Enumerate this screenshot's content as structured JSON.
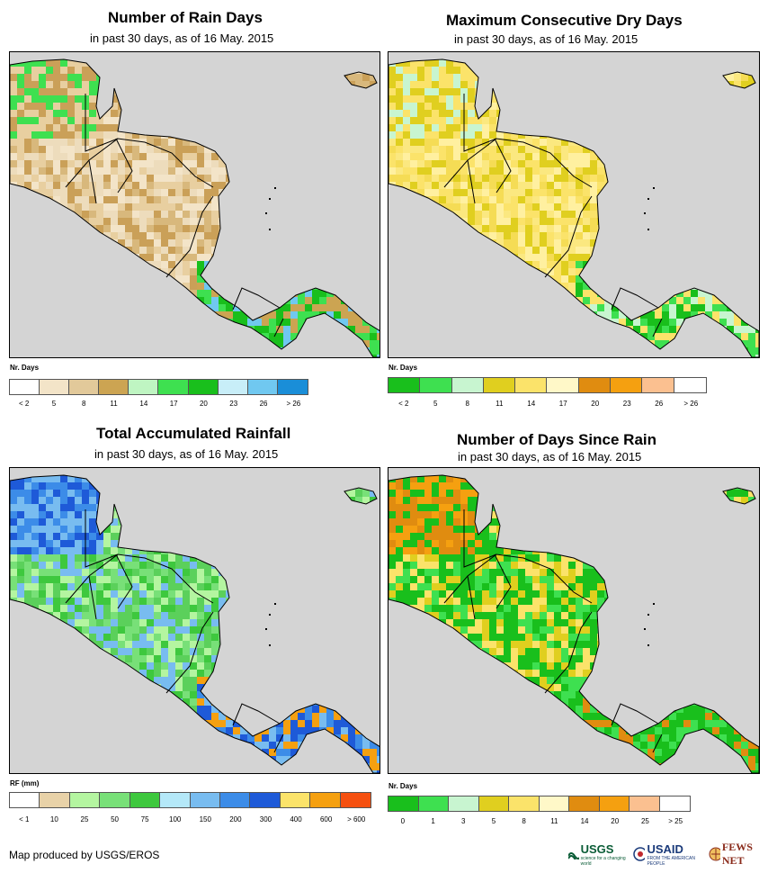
{
  "panels": [
    {
      "id": "rain-days",
      "title": "Number of Rain Days",
      "subtitle": "in past 30 days, as of 16 May. 2015",
      "legend_title": "Nr. Days",
      "legend_colors": [
        "#ffffff",
        "#f3e4c8",
        "#e2c99a",
        "#cca452",
        "#bff5c2",
        "#3ee050",
        "#19bf1c",
        "#c8eef8",
        "#70c8f0",
        "#1a8ed8"
      ],
      "legend_labels": [
        "< 2",
        "5",
        "8",
        "11",
        "14",
        "17",
        "20",
        "23",
        "26",
        "> 26"
      ],
      "land_palette": [
        "#e8cfa0",
        "#d8b87c",
        "#caa058",
        "#eddcbc",
        "#f3e4c8"
      ],
      "south_palette": [
        "#3ee050",
        "#19bf1c",
        "#70c8f0",
        "#cca452"
      ],
      "north_palette": [
        "#e8cfa0",
        "#caa058",
        "#3ee050"
      ]
    },
    {
      "id": "max-dry-days",
      "title": "Maximum Consecutive Dry Days",
      "subtitle": "in past 30 days, as of 16 May. 2015",
      "legend_title": "Nr. Days",
      "legend_colors": [
        "#19bf1c",
        "#3ee050",
        "#c8f5d0",
        "#e0cf1f",
        "#fbe36a",
        "#fff8c8",
        "#e08c10",
        "#f5a010",
        "#fbc090",
        "#ffffff"
      ],
      "legend_labels": [
        "< 2",
        "5",
        "8",
        "11",
        "14",
        "17",
        "20",
        "23",
        "26",
        "> 26"
      ],
      "land_palette": [
        "#fbe36a",
        "#f5dc55",
        "#e0cf1f",
        "#fbe880",
        "#fff0a0"
      ],
      "south_palette": [
        "#3ee050",
        "#19bf1c",
        "#c8f5d0",
        "#fbe36a"
      ],
      "north_palette": [
        "#fbe36a",
        "#e0cf1f",
        "#c8f5d0"
      ]
    },
    {
      "id": "total-rainfall",
      "title": "Total Accumulated Rainfall",
      "subtitle": "in past 30 days, as of 16 May. 2015",
      "legend_title": "RF (mm)",
      "legend_colors": [
        "#ffffff",
        "#e8d2a8",
        "#b4f5a0",
        "#78e078",
        "#3ec83e",
        "#b4e8f8",
        "#78bcf0",
        "#3c8ce8",
        "#1e5ad8",
        "#fbe36a",
        "#f5a010",
        "#f55010"
      ],
      "legend_labels": [
        "< 1",
        "10",
        "25",
        "50",
        "75",
        "100",
        "150",
        "200",
        "300",
        "400",
        "600",
        "> 600"
      ],
      "land_palette": [
        "#78e078",
        "#3ec83e",
        "#b4f5a0",
        "#78bcf0",
        "#5bd05b"
      ],
      "south_palette": [
        "#3c8ce8",
        "#1e5ad8",
        "#78bcf0",
        "#f5a010"
      ],
      "north_palette": [
        "#3c8ce8",
        "#78bcf0",
        "#1e5ad8"
      ]
    },
    {
      "id": "days-since-rain",
      "title": "Number of Days Since Rain",
      "subtitle": "in past 30 days, as of 16 May. 2015",
      "legend_title": "Nr. Days",
      "legend_colors": [
        "#19bf1c",
        "#3ee050",
        "#c8f5d0",
        "#e0cf1f",
        "#fbe36a",
        "#fff8c8",
        "#e08c10",
        "#f5a010",
        "#fbc090",
        "#ffffff"
      ],
      "legend_labels": [
        "0",
        "1",
        "3",
        "5",
        "8",
        "11",
        "14",
        "20",
        "25",
        "> 25"
      ],
      "land_palette": [
        "#19bf1c",
        "#3ee050",
        "#19bf1c",
        "#e0cf1f",
        "#fbe36a"
      ],
      "south_palette": [
        "#19bf1c",
        "#19bf1c",
        "#3ee050",
        "#e08c10"
      ],
      "north_palette": [
        "#f5a010",
        "#e08c10",
        "#19bf1c"
      ]
    }
  ],
  "footer": "Map produced by USGS/EROS",
  "logos": {
    "usgs": "USGS",
    "usgs_tagline": "science for a changing world",
    "usaid": "USAID",
    "usaid_tagline": "FROM THE AMERICAN PEOPLE",
    "fews": "FEWS NET"
  }
}
